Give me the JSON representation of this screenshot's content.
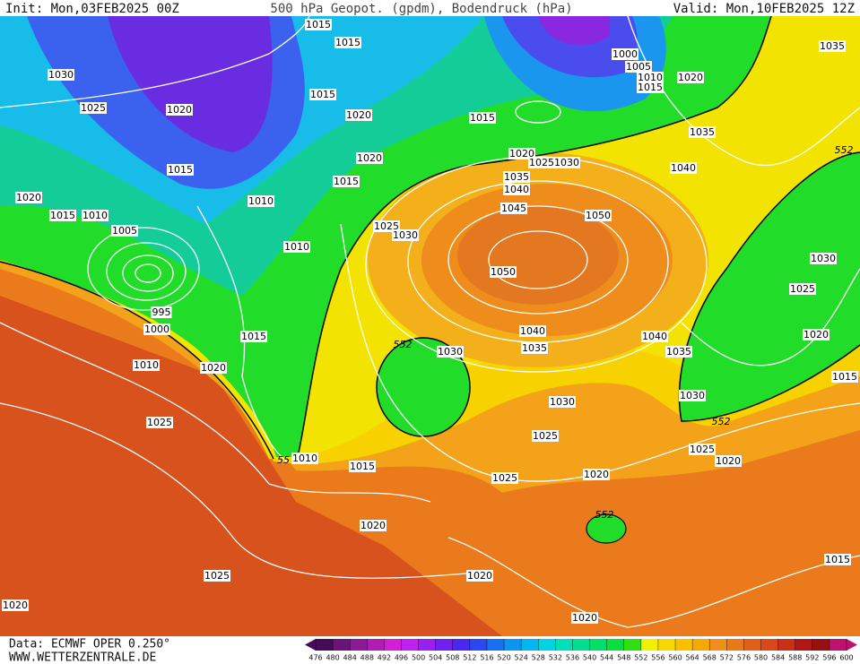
{
  "header": {
    "init": "Init: Mon,03FEB2025 00Z",
    "title": "500 hPa Geopot. (gpdm), Bodendruck (hPa)",
    "valid": "Valid: Mon,10FEB2025 12Z"
  },
  "isobar_labels": [
    1015,
    1015,
    1030,
    1020,
    1015,
    1025,
    1020,
    1015,
    1000,
    1005,
    1010,
    1015,
    1020,
    1035,
    1035,
    1020,
    1020,
    1025,
    1030,
    1015,
    1015,
    1035,
    1040,
    1040,
    1020,
    1010,
    1045,
    1015,
    1010,
    1050,
    1025,
    1030,
    1005,
    1010,
    1050,
    1030,
    1025,
    995,
    1000,
    1040,
    1040,
    1020,
    1015,
    1035,
    1030,
    1035,
    1010,
    1020,
    1015,
    1030,
    1030,
    1025,
    1025,
    1025,
    1020,
    1010,
    1015,
    1020,
    1025,
    1020,
    1025,
    1020,
    1015,
    1020,
    1020
  ],
  "geopotential_labels": [
    552,
    55,
    552,
    552,
    552
  ],
  "legend": {
    "levels": [
      476,
      480,
      484,
      488,
      492,
      496,
      500,
      504,
      508,
      512,
      516,
      520,
      524,
      528,
      532,
      536,
      540,
      544,
      548,
      552,
      556,
      560,
      564,
      568,
      572,
      576,
      580,
      584,
      588,
      592,
      596,
      600
    ],
    "colors": [
      "#4a0a5a",
      "#6a1478",
      "#8c1a96",
      "#b01cb4",
      "#d41ed4",
      "#c020f0",
      "#9a20f0",
      "#7020f0",
      "#4a28f0",
      "#2848f0",
      "#1870f0",
      "#0896f0",
      "#00b8f0",
      "#00d4e0",
      "#00e0b8",
      "#00e090",
      "#00e068",
      "#08e040",
      "#30e010",
      "#f0f000",
      "#f8d800",
      "#f8c000",
      "#f4a800",
      "#f09018",
      "#e87818",
      "#e06018",
      "#d84818",
      "#c83018",
      "#b01818",
      "#981010",
      "#c01070"
    ]
  },
  "footer": {
    "data": "Data: ECMWF OPER 0.250°",
    "site": "WWW.WETTERZENTRALE.DE"
  }
}
